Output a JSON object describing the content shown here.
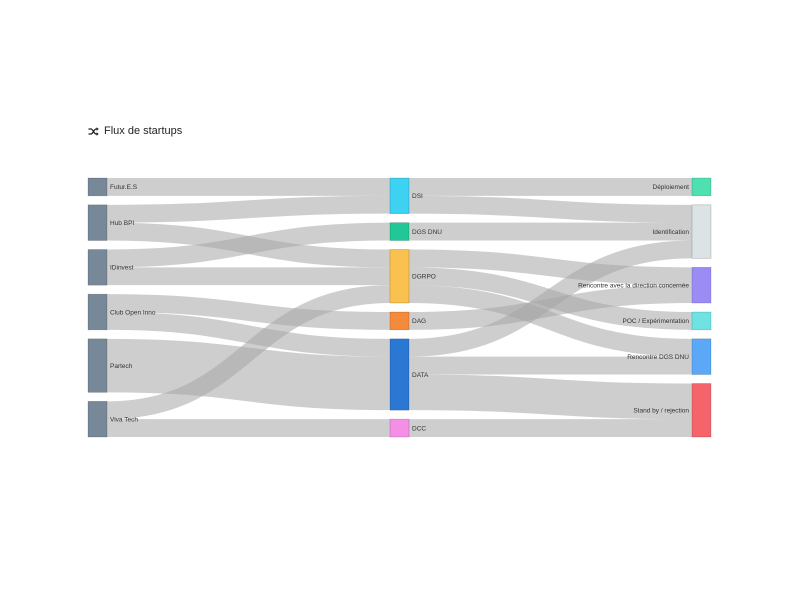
{
  "title": "Flux de startups",
  "title_icon": "shuffle-icon",
  "chart_data": {
    "type": "sankey",
    "link_color": "#a6a6a6",
    "nodes": [
      {
        "id": "futures",
        "label": "Futur.E.S",
        "column": 0,
        "value": 3,
        "color": "#778899"
      },
      {
        "id": "hubbpi",
        "label": "Hub BPI",
        "column": 0,
        "value": 6,
        "color": "#778899"
      },
      {
        "id": "idinvest",
        "label": "IDinvest",
        "column": 0,
        "value": 6,
        "color": "#778899"
      },
      {
        "id": "clubopen",
        "label": "Club Open Inno",
        "column": 0,
        "value": 6,
        "color": "#778899"
      },
      {
        "id": "partech",
        "label": "Partech",
        "column": 0,
        "value": 9,
        "color": "#778899"
      },
      {
        "id": "vivatech",
        "label": "Viva Tech",
        "column": 0,
        "value": 6,
        "color": "#778899"
      },
      {
        "id": "dsi",
        "label": "DSI",
        "column": 1,
        "value": 6,
        "color": "#3dd2f2"
      },
      {
        "id": "dgsdnu",
        "label": "DGS DNU",
        "column": 1,
        "value": 3,
        "color": "#21c796"
      },
      {
        "id": "dgrpo",
        "label": "DGRPO",
        "column": 1,
        "value": 9,
        "color": "#f9c14f"
      },
      {
        "id": "dag",
        "label": "DAG",
        "column": 1,
        "value": 3,
        "color": "#f58a3c"
      },
      {
        "id": "data",
        "label": "DATA",
        "column": 1,
        "value": 12,
        "color": "#2a77d4"
      },
      {
        "id": "dcc",
        "label": "DCC",
        "column": 1,
        "value": 3,
        "color": "#f48fe6"
      },
      {
        "id": "deploiement",
        "label": "Déploiement",
        "column": 2,
        "value": 3,
        "color": "#4fe0b2"
      },
      {
        "id": "identification",
        "label": "Identification",
        "column": 2,
        "value": 9,
        "color": "#dce3e6"
      },
      {
        "id": "rencontredir",
        "label": "Rencontre avec la direction concernée",
        "column": 2,
        "value": 6,
        "color": "#9b8cf5"
      },
      {
        "id": "poc",
        "label": "POC / Expérimentation",
        "column": 2,
        "value": 3,
        "color": "#6fe3e3"
      },
      {
        "id": "rencontredgs",
        "label": "Rencontre DGS DNU",
        "column": 2,
        "value": 6,
        "color": "#5aa8f7"
      },
      {
        "id": "standby",
        "label": "Stand by / rejection",
        "column": 2,
        "value": 9,
        "color": "#f4646a"
      }
    ],
    "links": [
      {
        "source": "futures",
        "target": "dsi",
        "value": 3
      },
      {
        "source": "hubbpi",
        "target": "dsi",
        "value": 3
      },
      {
        "source": "hubbpi",
        "target": "dgrpo",
        "value": 3
      },
      {
        "source": "idinvest",
        "target": "dgsdnu",
        "value": 3
      },
      {
        "source": "idinvest",
        "target": "dgrpo",
        "value": 3
      },
      {
        "source": "clubopen",
        "target": "dag",
        "value": 3
      },
      {
        "source": "clubopen",
        "target": "data",
        "value": 3
      },
      {
        "source": "partech",
        "target": "data",
        "value": 9
      },
      {
        "source": "vivatech",
        "target": "dgrpo",
        "value": 3
      },
      {
        "source": "vivatech",
        "target": "dcc",
        "value": 3
      },
      {
        "source": "dsi",
        "target": "deploiement",
        "value": 3
      },
      {
        "source": "dsi",
        "target": "identification",
        "value": 3
      },
      {
        "source": "dgsdnu",
        "target": "identification",
        "value": 3
      },
      {
        "source": "dgrpo",
        "target": "rencontredir",
        "value": 3
      },
      {
        "source": "dgrpo",
        "target": "poc",
        "value": 3
      },
      {
        "source": "dgrpo",
        "target": "rencontredgs",
        "value": 3
      },
      {
        "source": "dag",
        "target": "rencontredir",
        "value": 3
      },
      {
        "source": "data",
        "target": "identification",
        "value": 3
      },
      {
        "source": "data",
        "target": "rencontredgs",
        "value": 3
      },
      {
        "source": "data",
        "target": "standby",
        "value": 6
      },
      {
        "source": "dcc",
        "target": "standby",
        "value": 3
      }
    ]
  }
}
